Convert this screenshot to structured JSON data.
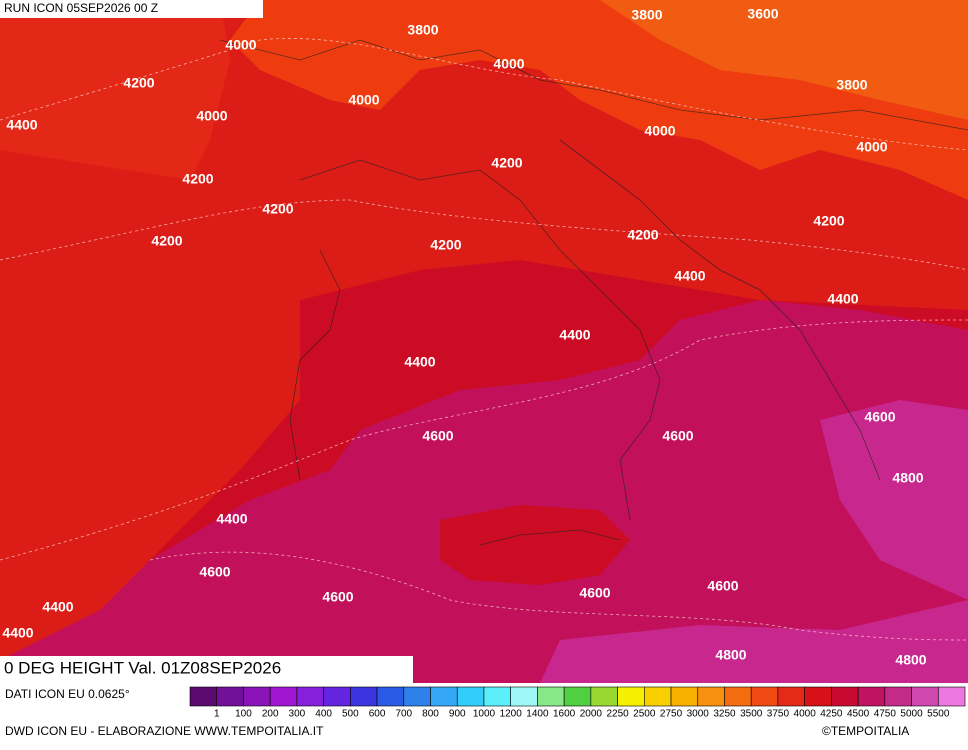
{
  "header": {
    "title": "RUN ICON 05SEP2026 00 Z"
  },
  "map": {
    "title": "0 DEG HEIGHT Val. 01Z08SEP2026",
    "contour_labels": [
      3800,
      3800,
      3600,
      4000,
      4000,
      3800,
      4200,
      4000,
      4400,
      4000,
      4000,
      4000,
      4200,
      4200,
      4200,
      4200,
      4200,
      4200,
      4200,
      4400,
      4400,
      4400,
      4400,
      4600,
      4600,
      4600,
      4800,
      4400,
      4600,
      4600,
      4600,
      4600,
      4400,
      4400,
      4800,
      4800
    ]
  },
  "legend": {
    "source": "DATI ICON EU 0.0625°",
    "labels": [
      1,
      100,
      200,
      300,
      400,
      500,
      600,
      700,
      800,
      900,
      1000,
      1200,
      1400,
      1600,
      2000,
      2250,
      2500,
      2750,
      3000,
      3250,
      3500,
      3750,
      4000,
      4250,
      4500,
      4750,
      5000,
      5500
    ],
    "colors": [
      "#5a0a6e",
      "#72109a",
      "#8a14b8",
      "#a016d0",
      "#8620dc",
      "#6424e0",
      "#3c34e0",
      "#2a5ae6",
      "#3080ec",
      "#34a8f4",
      "#30cef8",
      "#5ceefa",
      "#a0f8f6",
      "#88e888",
      "#50d040",
      "#98d830",
      "#f4f000",
      "#f8d000",
      "#f8b000",
      "#f89010",
      "#f46c10",
      "#ee4a12",
      "#e42a18",
      "#d81018",
      "#c80a30",
      "#c01460",
      "#c42a88",
      "#d048b0",
      "#ec78e0"
    ]
  },
  "footer": {
    "credit": "DWD ICON EU - ELABORAZIONE WWW.TEMPOITALIA.IT",
    "copyright": "©TEMPOITALIA"
  }
}
